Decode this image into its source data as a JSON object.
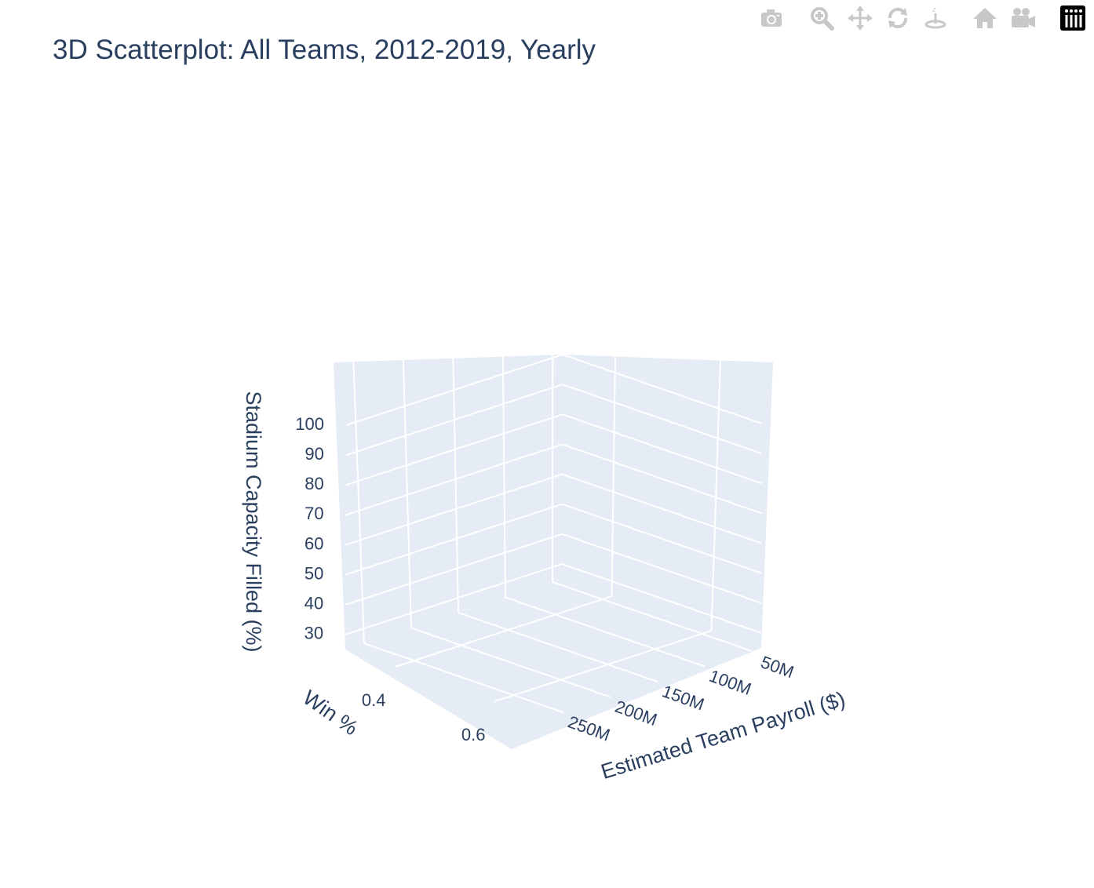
{
  "modebar": {
    "buttons": [
      {
        "name": "camera-icon",
        "title": "Download plot as a png"
      },
      {
        "name": "zoom-icon",
        "title": "Zoom"
      },
      {
        "name": "pan-icon",
        "title": "Pan"
      },
      {
        "name": "orbit-rotation-icon",
        "title": "Orbital rotation"
      },
      {
        "name": "turntable-rotation-icon",
        "title": "Turntable rotation"
      },
      {
        "name": "home-icon",
        "title": "Reset camera to default"
      },
      {
        "name": "movie-camera-icon",
        "title": "Reset camera to last save"
      },
      {
        "name": "plotly-logo-icon",
        "title": "Produced with Plotly"
      }
    ]
  },
  "colors": {
    "marker": "#636efa",
    "scene_bg": "#e5ecf6",
    "grid": "#ffffff",
    "text": "#2a3f5f",
    "modebar_icon": "#c8c8c8"
  },
  "chart_data": {
    "type": "scatter",
    "title": "3D Scatterplot: All Teams, 2012-2019, Yearly",
    "xlabel": "Estimated Team Payroll ($)",
    "ylabel": "Win %",
    "zlabel": "Stadium Capacity Filled (%)",
    "xlim": [
      40000000,
      270000000
    ],
    "ylim": [
      0.3,
      0.7
    ],
    "zlim": [
      25,
      100
    ],
    "xticks": [
      50000000,
      100000000,
      150000000,
      200000000,
      250000000
    ],
    "xtick_labels": [
      "50M",
      "100M",
      "150M",
      "200M",
      "250M"
    ],
    "yticks": [
      0.4,
      0.6
    ],
    "ytick_labels": [
      "0.4",
      "0.6"
    ],
    "zticks": [
      30,
      40,
      50,
      60,
      70,
      80,
      90,
      100
    ],
    "ztick_labels": [
      "30",
      "40",
      "50",
      "60",
      "70",
      "80",
      "90",
      "100"
    ],
    "grid": true,
    "points": []
  }
}
